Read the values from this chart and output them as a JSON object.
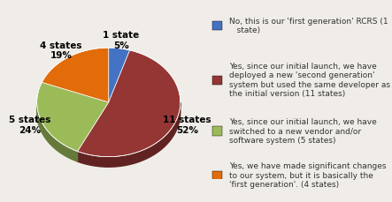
{
  "values": [
    1,
    11,
    5,
    4
  ],
  "labels": [
    "1 state\n5%",
    "11 states\n52%",
    "5 states\n24%",
    "4 states\n19%"
  ],
  "colors": [
    "#4472c4",
    "#943634",
    "#9bbb59",
    "#e26b0a"
  ],
  "legend_labels": [
    "No, this is our 'first generation' RCRS (1\n   state)",
    "Yes, since our initial launch, we have\ndeployed a new 'second generation'\nsystem but used the same developer as\nthe initial version (11 states)",
    "Yes, since our initial launch, we have\nswitched to a new vendor and/or\nsoftware system (5 states)",
    "Yes, we have made significant changes\nto our system, but it is basically the\n'first generation'. (4 states)"
  ],
  "background_color": "#f0ede8",
  "startangle": 90,
  "label_fontsize": 7.5,
  "legend_fontsize": 6.5
}
